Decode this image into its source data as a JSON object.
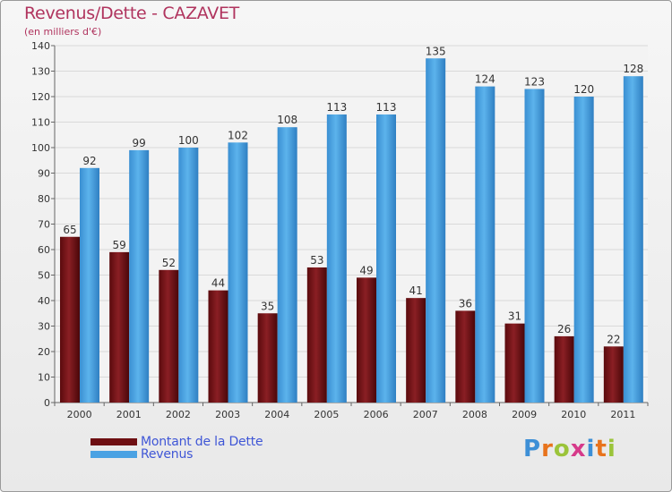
{
  "header": {
    "title": "Revenus/Dette - CAZAVET",
    "subtitle": "(en milliers d'€)"
  },
  "legend": {
    "debt_label": "Montant de la Dette",
    "revenue_label": "Revenus"
  },
  "logo": {
    "letters": [
      "P",
      "r",
      "o",
      "x",
      "i",
      "t",
      "i"
    ],
    "colors": [
      "#3d8fd6",
      "#e8731c",
      "#9bc43a",
      "#d63a8a",
      "#3d8fd6",
      "#e8731c",
      "#9bc43a"
    ]
  },
  "colors": {
    "debt": "#6e0f12",
    "revenue": "#4aa2e3",
    "title": "#b0345e",
    "legend_text": "#3f56d6"
  },
  "chart_data": {
    "type": "bar",
    "title": "Revenus/Dette - CAZAVET",
    "subtitle": "(en milliers d'€)",
    "xlabel": "",
    "ylabel": "",
    "ylim": [
      0,
      140
    ],
    "yticks": [
      0,
      10,
      20,
      30,
      40,
      50,
      60,
      70,
      80,
      90,
      100,
      110,
      120,
      130,
      140
    ],
    "categories": [
      "2000",
      "2001",
      "2002",
      "2003",
      "2004",
      "2005",
      "2006",
      "2007",
      "2008",
      "2009",
      "2010",
      "2011"
    ],
    "series": [
      {
        "name": "Montant de la Dette",
        "values": [
          65,
          59,
          52,
          44,
          35,
          53,
          49,
          41,
          36,
          31,
          26,
          22
        ]
      },
      {
        "name": "Revenus",
        "values": [
          92,
          99,
          100,
          102,
          108,
          113,
          113,
          135,
          124,
          123,
          120,
          128
        ]
      }
    ],
    "grid": true,
    "legend_position": "bottom-left"
  }
}
